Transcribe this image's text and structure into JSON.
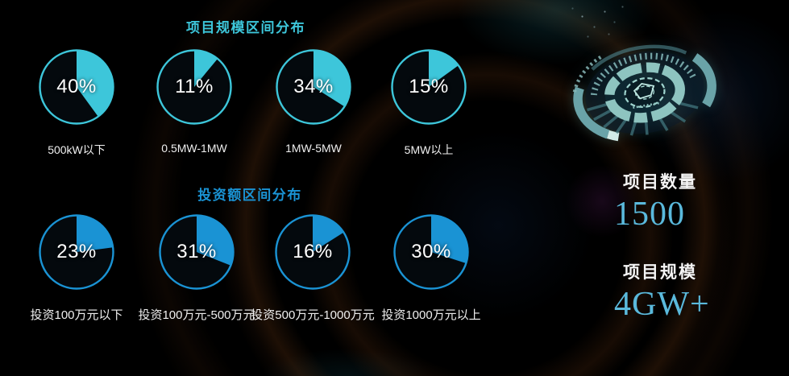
{
  "charts": {
    "scale": {
      "title": "项目规模区间分布",
      "accent": "#3dc6da",
      "items": [
        {
          "pct": "40%",
          "value": 40,
          "label": "500kW以下"
        },
        {
          "pct": "11%",
          "value": 11,
          "label": "0.5MW-1MW"
        },
        {
          "pct": "34%",
          "value": 34,
          "label": "1MW-5MW"
        },
        {
          "pct": "15%",
          "value": 15,
          "label": "5MW以上"
        }
      ]
    },
    "investment": {
      "title": "投资额区间分布",
      "accent": "#1a93d4",
      "items": [
        {
          "pct": "23%",
          "value": 23,
          "label": "投资100万元以下"
        },
        {
          "pct": "31%",
          "value": 31,
          "label": "投资100万元-500万元"
        },
        {
          "pct": "16%",
          "value": 16,
          "label": "投资500万元-1000万元"
        },
        {
          "pct": "30%",
          "value": 30,
          "label": "投资1000万元以上"
        }
      ]
    }
  },
  "stats": {
    "accent": "#5ab9dc",
    "items": [
      {
        "label": "项目数量",
        "value": "1500"
      },
      {
        "label": "项目规模",
        "value": "4GW+"
      }
    ]
  },
  "decor": {
    "gear": "hud-gear-icon"
  },
  "chart_data": [
    {
      "type": "pie",
      "title": "项目规模区间分布",
      "categories": [
        "500kW以下",
        "0.5MW-1MW",
        "1MW-5MW",
        "5MW以上"
      ],
      "values": [
        40,
        11,
        34,
        15
      ],
      "unit": "percent",
      "accent": "#3dc6da",
      "layout": "four individual single-slice pies, slice starts at 12 o'clock and sweeps clockwise, value label centered in pie, category label below"
    },
    {
      "type": "pie",
      "title": "投资额区间分布",
      "categories": [
        "投资100万元以下",
        "投资100万元-500万元",
        "投资500万元-1000万元",
        "投资1000万元以上"
      ],
      "values": [
        23,
        31,
        16,
        30
      ],
      "unit": "percent",
      "accent": "#1a93d4",
      "layout": "four individual single-slice pies, slice starts at 12 o'clock and sweeps clockwise, value label centered in pie, category label below"
    }
  ]
}
